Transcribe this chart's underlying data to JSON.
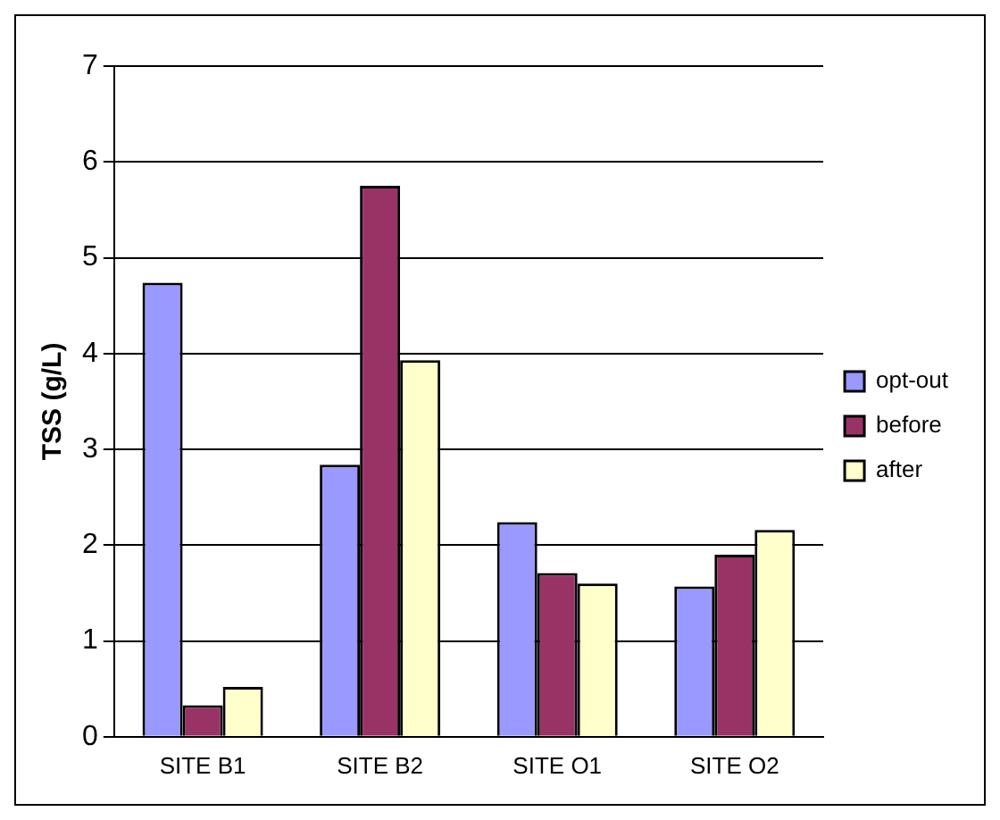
{
  "chart_data": {
    "type": "bar",
    "ylabel": "TSS (g/L)",
    "categories": [
      "SITE B1",
      "SITE B2",
      "SITE O1",
      "SITE O2"
    ],
    "series": [
      {
        "name": "opt-out",
        "color": "#9999ff",
        "values": [
          4.74,
          2.84,
          2.24,
          1.57
        ]
      },
      {
        "name": "before",
        "color": "#993366",
        "values": [
          0.33,
          5.75,
          1.71,
          1.9
        ]
      },
      {
        "name": "after",
        "color": "#ffffcc",
        "values": [
          0.52,
          3.93,
          1.6,
          2.16
        ]
      }
    ],
    "ylim": [
      0,
      7
    ],
    "yticks": [
      0,
      1,
      2,
      3,
      4,
      5,
      6,
      7
    ],
    "grid": "y",
    "legend": "right"
  }
}
